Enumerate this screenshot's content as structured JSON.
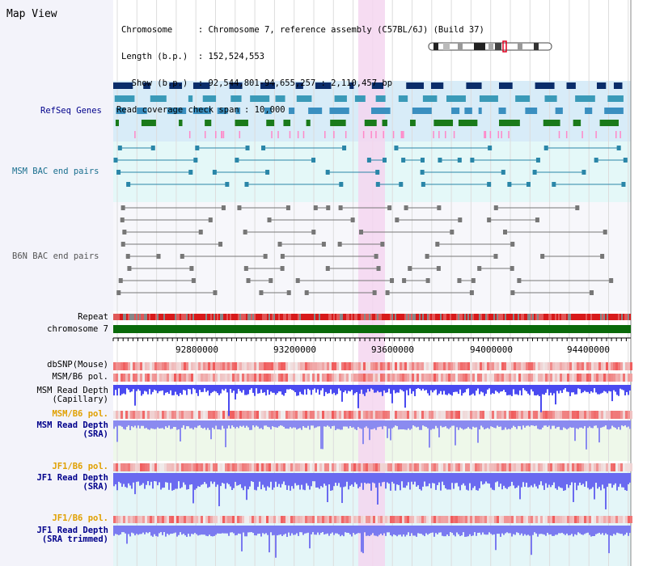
{
  "title": "Map View",
  "header": {
    "lines": [
      "Chromosome     : Chromosome 7, reference assembly (C57BL/6J) (Build 37)",
      "Length (b.p.)  : 152,524,553",
      "  Show (b.p.)  : 92,544,801-94,655,257 : 2,110,457 bp",
      "Read coverage check span : 10,000"
    ]
  },
  "tracks": {
    "refseq": "RefSeq Genes",
    "msm_bac": "MSM BAC end pairs",
    "b6n_bac": "B6N BAC end pairs",
    "repeat": "Repeat",
    "chromosome": "chromosome 7",
    "dbsnp": "dbSNP(Mouse)",
    "msm_b6_pol": "MSM/B6 pol.",
    "msm_depth_cap": "MSM Read Depth\n(Capillary)",
    "msm_b6_pol2": "MSM/B6 pol.",
    "msm_depth_sra": "MSM Read Depth\n(SRA)",
    "jf1_b6_pol": "JF1/B6 pol.",
    "jf1_depth_sra": "JF1 Read Depth\n(SRA)",
    "jf1_b6_pol2": "JF1/B6 pol.",
    "jf1_depth_trim": "JF1 Read Depth\n(SRA trimmed)"
  },
  "ruler": {
    "ticks": [
      "92800000",
      "93200000",
      "93600000",
      "94000000",
      "94400000"
    ]
  },
  "colors": {
    "label_blue": "#00008b",
    "label_teal": "#1a6f8f",
    "label_gray": "#555555",
    "label_orange": "#e0a000",
    "highlight": "#f5d6f0",
    "refseq_bg": "#d8ecf8",
    "msm_bg": "#e4f8f8",
    "chromosome": "#0a6a0a"
  }
}
